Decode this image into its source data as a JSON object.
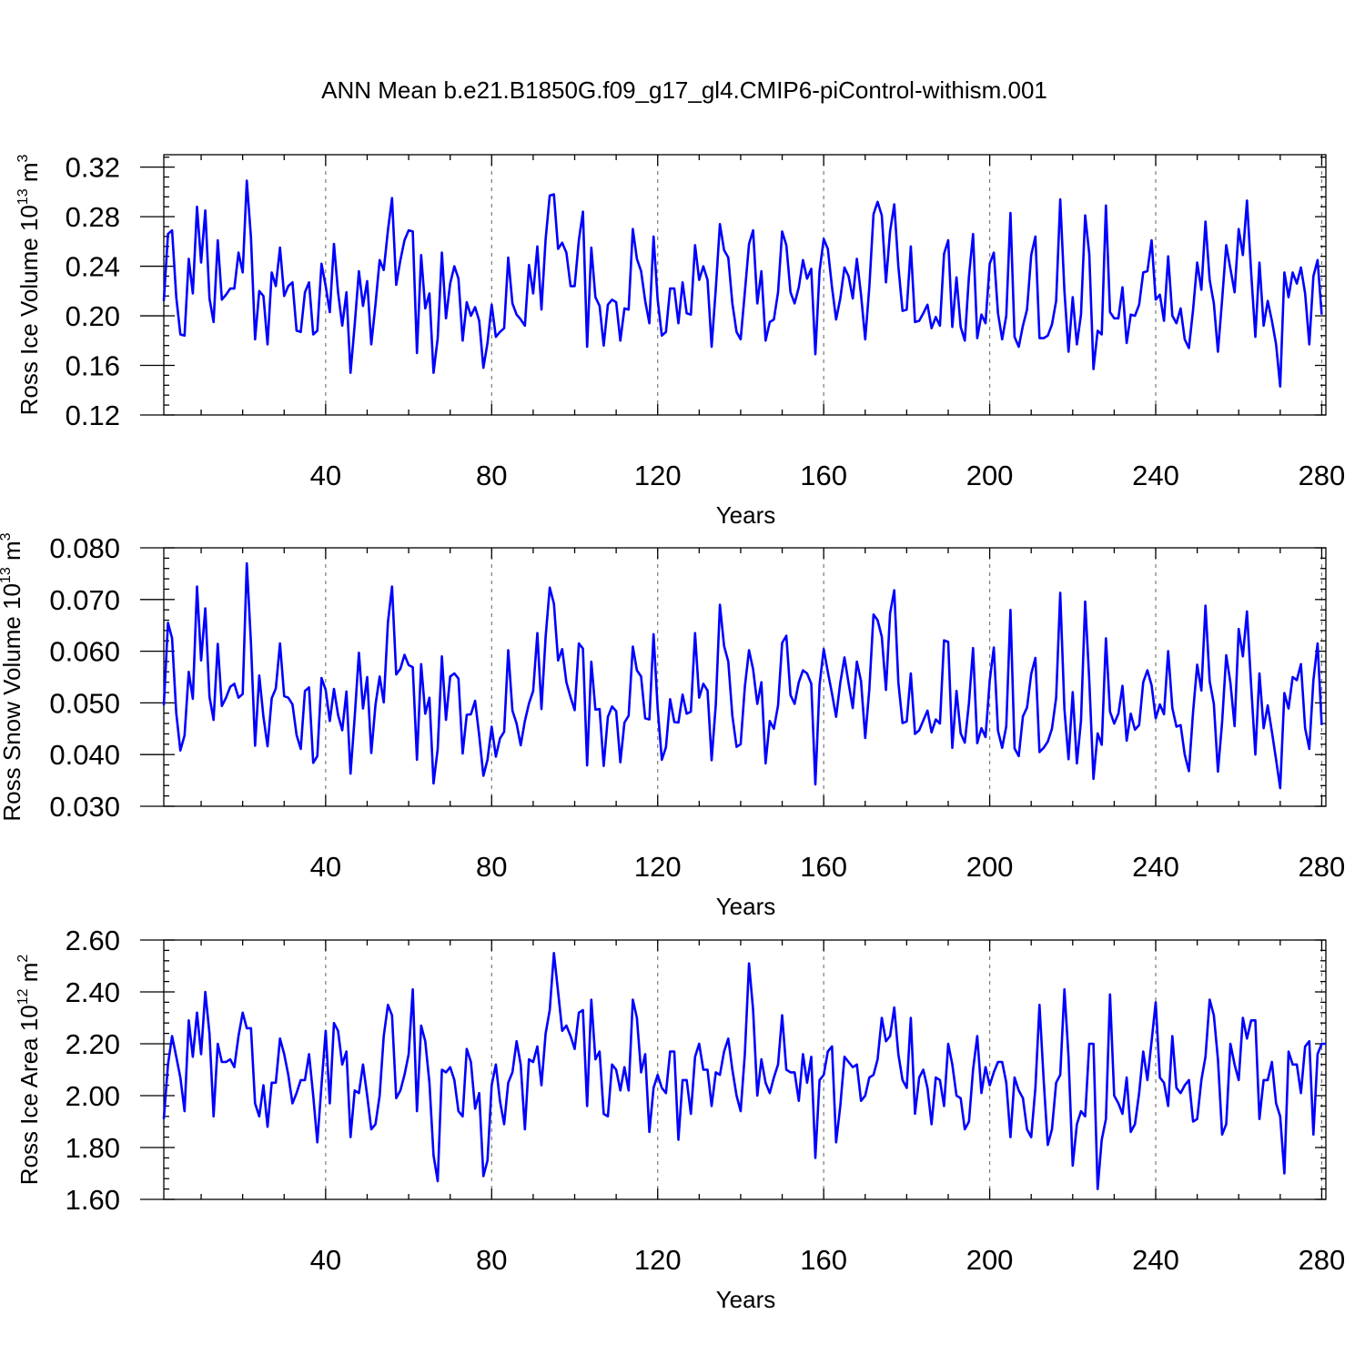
{
  "figure": {
    "title": "ANN Mean b.e21.B1850G.f09_g17_gl4.CMIP6-piControl-withism.001",
    "line_color": "#0000ff"
  },
  "chart_data": [
    {
      "type": "line",
      "xlabel": "Years",
      "ylabel": {
        "text": "Ross Ice Volume 10",
        "exp": "13",
        "unit": "m",
        "unit_exp": "3"
      },
      "xlim": [
        1,
        281
      ],
      "ylim": [
        0.12,
        0.33
      ],
      "x_ticks": [
        40,
        80,
        120,
        160,
        200,
        240,
        280
      ],
      "y_ticks": [
        "0.12",
        "0.16",
        "0.20",
        "0.24",
        "0.28",
        "0.32"
      ],
      "grid": "vertical dashed at major x ticks",
      "series": [
        {
          "x_start": 1,
          "x_step": 1,
          "values": [
            0.212,
            0.266,
            0.269,
            0.215,
            0.185,
            0.184,
            0.246,
            0.218,
            0.288,
            0.243,
            0.285,
            0.214,
            0.195,
            0.261,
            0.213,
            0.217,
            0.222,
            0.222,
            0.251,
            0.235,
            0.309,
            0.263,
            0.181,
            0.22,
            0.216,
            0.177,
            0.235,
            0.224,
            0.255,
            0.216,
            0.224,
            0.227,
            0.188,
            0.187,
            0.219,
            0.227,
            0.185,
            0.188,
            0.242,
            0.224,
            0.203,
            0.258,
            0.219,
            0.192,
            0.219,
            0.154,
            0.193,
            0.236,
            0.208,
            0.228,
            0.177,
            0.209,
            0.245,
            0.237,
            0.269,
            0.295,
            0.225,
            0.245,
            0.261,
            0.269,
            0.268,
            0.17,
            0.249,
            0.206,
            0.218,
            0.154,
            0.182,
            0.251,
            0.198,
            0.226,
            0.24,
            0.23,
            0.18,
            0.211,
            0.2,
            0.207,
            0.196,
            0.158,
            0.178,
            0.209,
            0.183,
            0.187,
            0.19,
            0.247,
            0.21,
            0.201,
            0.197,
            0.192,
            0.241,
            0.218,
            0.256,
            0.205,
            0.262,
            0.297,
            0.298,
            0.254,
            0.259,
            0.251,
            0.224,
            0.224,
            0.261,
            0.284,
            0.175,
            0.255,
            0.215,
            0.208,
            0.176,
            0.209,
            0.213,
            0.211,
            0.18,
            0.206,
            0.205,
            0.27,
            0.246,
            0.236,
            0.212,
            0.194,
            0.264,
            0.213,
            0.184,
            0.187,
            0.222,
            0.222,
            0.194,
            0.227,
            0.202,
            0.201,
            0.257,
            0.229,
            0.24,
            0.229,
            0.175,
            0.222,
            0.274,
            0.253,
            0.247,
            0.21,
            0.187,
            0.181,
            0.219,
            0.258,
            0.269,
            0.21,
            0.236,
            0.18,
            0.195,
            0.197,
            0.219,
            0.268,
            0.257,
            0.219,
            0.21,
            0.223,
            0.245,
            0.23,
            0.238,
            0.169,
            0.236,
            0.262,
            0.254,
            0.223,
            0.197,
            0.214,
            0.239,
            0.232,
            0.214,
            0.246,
            0.217,
            0.181,
            0.223,
            0.282,
            0.292,
            0.281,
            0.227,
            0.268,
            0.29,
            0.24,
            0.204,
            0.205,
            0.256,
            0.195,
            0.196,
            0.202,
            0.209,
            0.19,
            0.199,
            0.192,
            0.25,
            0.261,
            0.191,
            0.231,
            0.191,
            0.18,
            0.232,
            0.266,
            0.182,
            0.201,
            0.194,
            0.242,
            0.251,
            0.202,
            0.181,
            0.2,
            0.283,
            0.183,
            0.175,
            0.192,
            0.205,
            0.249,
            0.264,
            0.182,
            0.182,
            0.184,
            0.193,
            0.212,
            0.294,
            0.22,
            0.171,
            0.215,
            0.177,
            0.201,
            0.281,
            0.25,
            0.157,
            0.188,
            0.185,
            0.289,
            0.203,
            0.198,
            0.198,
            0.223,
            0.178,
            0.201,
            0.2,
            0.209,
            0.235,
            0.236,
            0.261,
            0.213,
            0.217,
            0.196,
            0.248,
            0.2,
            0.194,
            0.206,
            0.181,
            0.174,
            0.205,
            0.243,
            0.221,
            0.276,
            0.229,
            0.21,
            0.171,
            0.213,
            0.257,
            0.238,
            0.219,
            0.27,
            0.249,
            0.293,
            0.235,
            0.183,
            0.243,
            0.192,
            0.212,
            0.196,
            0.177,
            0.143,
            0.235,
            0.215,
            0.235,
            0.226,
            0.239,
            0.218,
            0.177,
            0.232,
            0.245,
            0.201
          ]
        }
      ]
    },
    {
      "type": "line",
      "xlabel": "Years",
      "ylabel": {
        "text": "Ross Snow Volume 10",
        "exp": "13",
        "unit": "m",
        "unit_exp": "3"
      },
      "xlim": [
        1,
        281
      ],
      "ylim": [
        0.03,
        0.08
      ],
      "x_ticks": [
        40,
        80,
        120,
        160,
        200,
        240,
        280
      ],
      "y_ticks": [
        "0.030",
        "0.040",
        "0.050",
        "0.060",
        "0.070",
        "0.080"
      ],
      "grid": "vertical dashed at major x ticks",
      "series": [
        {
          "x_start": 1,
          "x_step": 1,
          "values": [
            0.0495,
            0.0655,
            0.0625,
            0.048,
            0.0408,
            0.0437,
            0.056,
            0.0508,
            0.0725,
            0.0582,
            0.0683,
            0.0512,
            0.0467,
            0.0614,
            0.0494,
            0.051,
            0.0531,
            0.0537,
            0.051,
            0.0517,
            0.077,
            0.0615,
            0.0417,
            0.0553,
            0.0473,
            0.0416,
            0.0509,
            0.0528,
            0.0615,
            0.0513,
            0.051,
            0.0497,
            0.0438,
            0.0411,
            0.0523,
            0.053,
            0.0384,
            0.0397,
            0.0548,
            0.0525,
            0.0465,
            0.0527,
            0.0477,
            0.0447,
            0.0522,
            0.0363,
            0.0473,
            0.0597,
            0.0489,
            0.055,
            0.0403,
            0.0496,
            0.0551,
            0.0501,
            0.0656,
            0.0725,
            0.0555,
            0.0566,
            0.0593,
            0.0573,
            0.0569,
            0.039,
            0.0575,
            0.0479,
            0.051,
            0.0344,
            0.0411,
            0.059,
            0.0467,
            0.0551,
            0.0557,
            0.0547,
            0.0402,
            0.0477,
            0.0478,
            0.0504,
            0.0437,
            0.0359,
            0.039,
            0.0454,
            0.0396,
            0.0431,
            0.0444,
            0.0602,
            0.0485,
            0.046,
            0.0418,
            0.0465,
            0.0499,
            0.0523,
            0.0635,
            0.0488,
            0.0628,
            0.0723,
            0.0692,
            0.0582,
            0.0604,
            0.054,
            0.0511,
            0.0486,
            0.0615,
            0.0605,
            0.0379,
            0.058,
            0.0487,
            0.0488,
            0.0378,
            0.0473,
            0.0493,
            0.0484,
            0.0385,
            0.0462,
            0.0475,
            0.0609,
            0.0563,
            0.0551,
            0.047,
            0.0468,
            0.0633,
            0.049,
            0.039,
            0.0414,
            0.0507,
            0.0463,
            0.0462,
            0.0516,
            0.0479,
            0.0483,
            0.0635,
            0.051,
            0.0537,
            0.0524,
            0.0389,
            0.0497,
            0.069,
            0.061,
            0.058,
            0.0475,
            0.0415,
            0.042,
            0.0531,
            0.0602,
            0.0565,
            0.0498,
            0.054,
            0.0383,
            0.0465,
            0.045,
            0.0495,
            0.0616,
            0.063,
            0.0515,
            0.0498,
            0.054,
            0.0563,
            0.0557,
            0.0537,
            0.0342,
            0.0535,
            0.0604,
            0.056,
            0.0518,
            0.0473,
            0.0539,
            0.0588,
            0.0538,
            0.049,
            0.058,
            0.0542,
            0.0432,
            0.0526,
            0.0671,
            0.066,
            0.0628,
            0.0525,
            0.0673,
            0.0718,
            0.054,
            0.0461,
            0.0464,
            0.0557,
            0.044,
            0.0447,
            0.0466,
            0.0485,
            0.0443,
            0.0468,
            0.046,
            0.0621,
            0.0618,
            0.0413,
            0.0523,
            0.0441,
            0.0423,
            0.05,
            0.0606,
            0.0422,
            0.0451,
            0.0434,
            0.0543,
            0.0607,
            0.0446,
            0.0413,
            0.0455,
            0.068,
            0.0412,
            0.0397,
            0.0474,
            0.0491,
            0.0556,
            0.0587,
            0.0405,
            0.0413,
            0.0425,
            0.045,
            0.051,
            0.0713,
            0.0488,
            0.0391,
            0.0521,
            0.0383,
            0.0465,
            0.0696,
            0.0544,
            0.0353,
            0.0441,
            0.0419,
            0.0625,
            0.0483,
            0.046,
            0.0479,
            0.0533,
            0.0427,
            0.0479,
            0.0448,
            0.0457,
            0.054,
            0.0563,
            0.0534,
            0.047,
            0.0497,
            0.0478,
            0.06,
            0.049,
            0.0454,
            0.0457,
            0.04,
            0.0368,
            0.0483,
            0.0574,
            0.0524,
            0.0688,
            0.0542,
            0.0498,
            0.0367,
            0.0463,
            0.0592,
            0.0539,
            0.0455,
            0.0643,
            0.059,
            0.0677,
            0.0533,
            0.04,
            0.0557,
            0.0451,
            0.0495,
            0.0444,
            0.039,
            0.0335,
            0.0519,
            0.0489,
            0.055,
            0.0544,
            0.0575,
            0.0451,
            0.0411,
            0.0544,
            0.0615,
            0.0457
          ]
        }
      ]
    },
    {
      "type": "line",
      "xlabel": "Years",
      "ylabel": {
        "text": "Ross Ice Area 10",
        "exp": "12",
        "unit": "m",
        "unit_exp": "2"
      },
      "xlim": [
        1,
        281
      ],
      "ylim": [
        1.6,
        2.6
      ],
      "x_ticks": [
        40,
        80,
        120,
        160,
        200,
        240,
        280
      ],
      "y_ticks": [
        "1.60",
        "1.80",
        "2.00",
        "2.20",
        "2.40",
        "2.60"
      ],
      "grid": "vertical dashed at major x ticks",
      "series": [
        {
          "x_start": 1,
          "x_step": 1,
          "values": [
            1.91,
            2.12,
            2.23,
            2.15,
            2.07,
            1.94,
            2.29,
            2.15,
            2.32,
            2.16,
            2.4,
            2.24,
            1.92,
            2.2,
            2.13,
            2.13,
            2.14,
            2.11,
            2.23,
            2.32,
            2.26,
            2.26,
            1.97,
            1.92,
            2.04,
            1.88,
            2.05,
            2.05,
            2.22,
            2.16,
            2.08,
            1.97,
            2.01,
            2.06,
            2.06,
            2.16,
            2.0,
            1.82,
            2.04,
            2.25,
            1.97,
            2.28,
            2.25,
            2.12,
            2.17,
            1.84,
            2.02,
            2.01,
            2.12,
            2.0,
            1.87,
            1.89,
            2.0,
            2.23,
            2.35,
            2.31,
            1.99,
            2.02,
            2.08,
            2.16,
            2.41,
            1.94,
            2.27,
            2.21,
            2.05,
            1.77,
            1.67,
            2.1,
            2.09,
            2.11,
            2.06,
            1.94,
            1.92,
            2.18,
            2.13,
            1.95,
            2.01,
            1.69,
            1.75,
            2.04,
            2.12,
            1.98,
            1.89,
            2.05,
            2.09,
            2.21,
            2.12,
            1.87,
            2.14,
            2.13,
            2.19,
            2.04,
            2.24,
            2.33,
            2.55,
            2.4,
            2.25,
            2.27,
            2.23,
            2.18,
            2.32,
            2.33,
            1.96,
            2.37,
            2.14,
            2.17,
            1.93,
            1.92,
            2.12,
            2.1,
            2.02,
            2.11,
            2.02,
            2.37,
            2.3,
            2.09,
            2.16,
            1.86,
            2.03,
            2.08,
            2.03,
            2.01,
            2.17,
            2.17,
            1.83,
            2.06,
            2.06,
            1.93,
            2.15,
            2.2,
            2.1,
            2.1,
            1.96,
            2.09,
            2.08,
            2.17,
            2.22,
            2.1,
            2.0,
            1.94,
            2.16,
            2.51,
            2.33,
            2.0,
            2.14,
            2.05,
            2.01,
            2.07,
            2.12,
            2.31,
            2.1,
            2.09,
            2.09,
            1.98,
            2.16,
            2.05,
            2.15,
            1.76,
            2.06,
            2.08,
            2.17,
            2.19,
            1.82,
            1.96,
            2.15,
            2.13,
            2.11,
            2.12,
            1.98,
            2.0,
            2.07,
            2.08,
            2.14,
            2.3,
            2.21,
            2.23,
            2.34,
            2.16,
            2.06,
            2.03,
            2.3,
            1.93,
            2.07,
            2.1,
            2.03,
            1.89,
            2.07,
            2.06,
            1.96,
            2.2,
            2.12,
            2.0,
            1.99,
            1.87,
            1.9,
            2.1,
            2.23,
            2.01,
            2.11,
            2.04,
            2.09,
            2.13,
            2.13,
            2.05,
            1.84,
            2.07,
            2.02,
            1.99,
            1.87,
            1.84,
            2.03,
            2.35,
            2.06,
            1.81,
            1.87,
            2.05,
            2.08,
            2.41,
            2.15,
            1.73,
            1.89,
            1.94,
            1.92,
            2.2,
            2.2,
            1.64,
            1.83,
            1.91,
            2.39,
            2.0,
            1.97,
            1.93,
            2.07,
            1.86,
            1.89,
            2.01,
            2.17,
            2.06,
            2.21,
            2.36,
            2.07,
            2.05,
            1.96,
            2.23,
            2.03,
            2.01,
            2.04,
            2.06,
            1.9,
            1.91,
            2.06,
            2.15,
            2.37,
            2.31,
            2.14,
            1.85,
            1.89,
            2.2,
            2.12,
            2.06,
            2.3,
            2.22,
            2.29,
            2.29,
            1.91,
            2.06,
            2.06,
            2.13,
            1.97,
            1.92,
            1.7,
            2.17,
            2.12,
            2.12,
            2.01,
            2.19,
            2.21,
            1.85,
            2.16,
            2.2,
            2.2
          ]
        }
      ]
    }
  ]
}
